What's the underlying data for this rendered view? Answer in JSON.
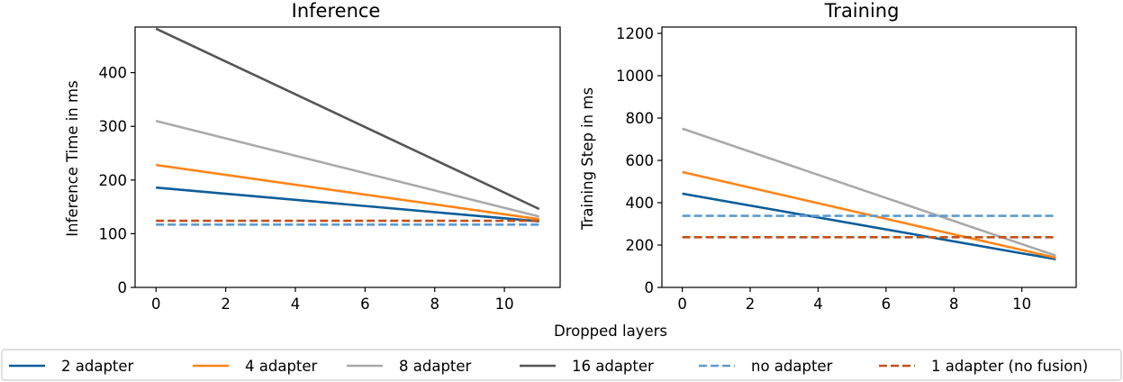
{
  "figure": {
    "shared_xlabel": "Dropped layers"
  },
  "legend": [
    {
      "label": "2 adapter",
      "color": "#0b5d99",
      "dash": "solid"
    },
    {
      "label": "4 adapter",
      "color": "#ff8418",
      "dash": "solid"
    },
    {
      "label": "8 adapter",
      "color": "#a9a9a9",
      "dash": "solid"
    },
    {
      "label": "16 adapter",
      "color": "#555555",
      "dash": "solid"
    },
    {
      "label": "no adapter",
      "color": "#5b9bd0",
      "dash": "dashed"
    },
    {
      "label": "1 adapter (no fusion)",
      "color": "#c2511a",
      "dash": "dashed"
    }
  ],
  "chart_data": [
    {
      "type": "line",
      "title": "Inference",
      "xlabel": "",
      "ylabel": "Inference Time in ms",
      "xlim": [
        -0.6,
        11.6
      ],
      "ylim": [
        0,
        485
      ],
      "xticks": [
        0,
        2,
        4,
        6,
        8,
        10
      ],
      "yticks": [
        0,
        100,
        200,
        300,
        400
      ],
      "grid": false,
      "series": [
        {
          "name": "2 adapter",
          "x": [
            0,
            11
          ],
          "y": [
            186,
            123
          ]
        },
        {
          "name": "4 adapter",
          "x": [
            0,
            11
          ],
          "y": [
            228,
            127
          ]
        },
        {
          "name": "8 adapter",
          "x": [
            0,
            11
          ],
          "y": [
            310,
            132
          ]
        },
        {
          "name": "16 adapter",
          "x": [
            0,
            11
          ],
          "y": [
            482,
            146
          ]
        },
        {
          "name": "no adapter",
          "x": [
            0,
            11
          ],
          "y": [
            117,
            117
          ]
        },
        {
          "name": "1 adapter (no fusion)",
          "x": [
            0,
            11
          ],
          "y": [
            124,
            124
          ]
        }
      ]
    },
    {
      "type": "line",
      "title": "Training",
      "xlabel": "",
      "ylabel": "Training Step in ms",
      "xlim": [
        -0.6,
        11.6
      ],
      "ylim": [
        0,
        1230
      ],
      "xticks": [
        0,
        2,
        4,
        6,
        8,
        10
      ],
      "yticks": [
        0,
        200,
        400,
        600,
        800,
        1000,
        1200
      ],
      "grid": false,
      "series": [
        {
          "name": "2 adapter",
          "x": [
            0,
            11
          ],
          "y": [
            443,
            133
          ]
        },
        {
          "name": "4 adapter",
          "x": [
            0,
            11
          ],
          "y": [
            545,
            140
          ]
        },
        {
          "name": "8 adapter",
          "x": [
            0,
            11
          ],
          "y": [
            750,
            150
          ]
        },
        {
          "name": "no adapter",
          "x": [
            0,
            11
          ],
          "y": [
            338,
            338
          ]
        },
        {
          "name": "1 adapter (no fusion)",
          "x": [
            0,
            11
          ],
          "y": [
            237,
            237
          ]
        }
      ]
    }
  ]
}
